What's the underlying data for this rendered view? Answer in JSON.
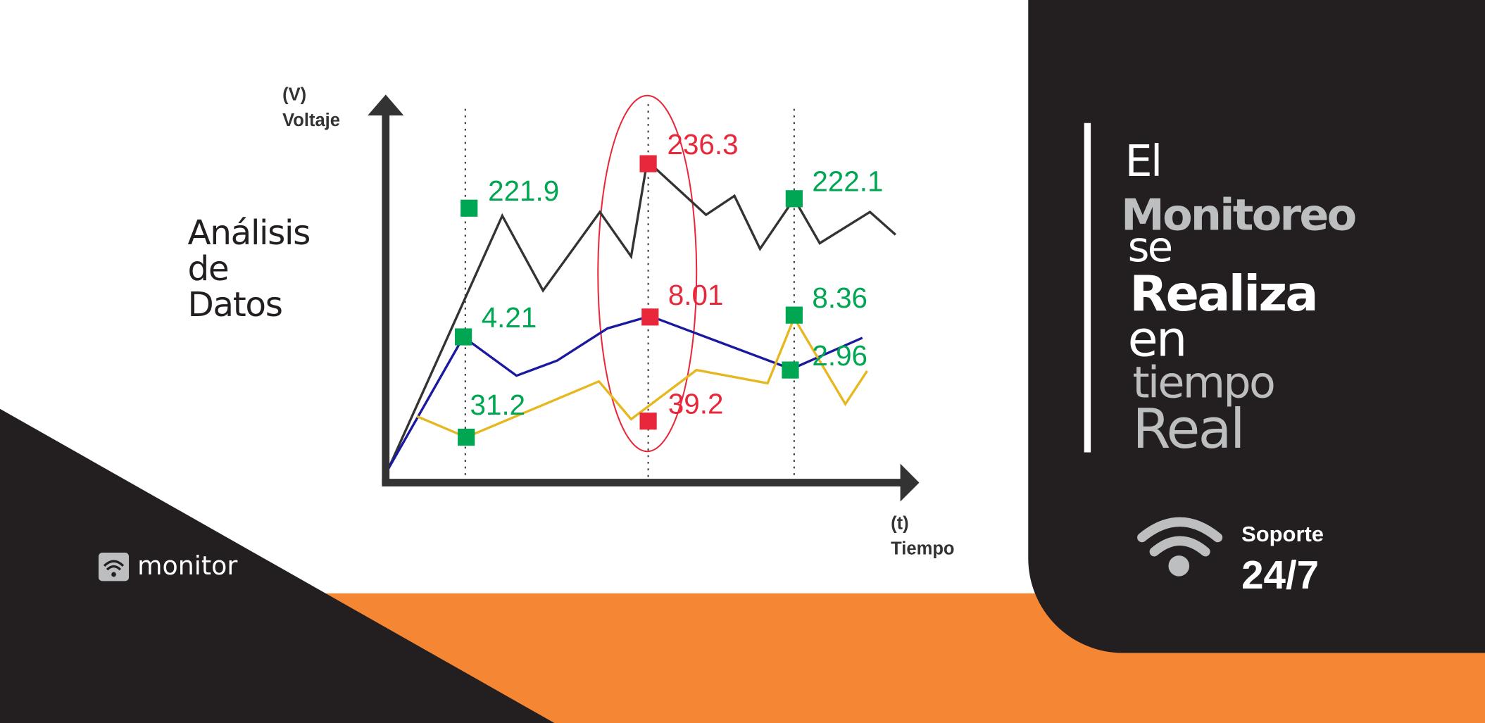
{
  "chart": {
    "y_axis": {
      "unit": "(V)",
      "label": "Voltaje"
    },
    "x_axis": {
      "unit": "(t)",
      "label": "Tiempo"
    },
    "title_lines": [
      "Análisis",
      "de",
      "Datos"
    ],
    "labels": {
      "green": [
        "221.9",
        "4.21",
        "31.2",
        "222.1",
        "8.36",
        "2.96"
      ],
      "red": [
        "236.3",
        "8.01",
        "39.2"
      ]
    }
  },
  "panel": {
    "headline_lines": [
      "El",
      "Monitoreo",
      "se",
      "Realiza",
      "en",
      "tiempo",
      "Real"
    ],
    "support": {
      "label": "Soporte",
      "hours": "24/7"
    }
  },
  "logo": {
    "text": "monitor"
  }
}
